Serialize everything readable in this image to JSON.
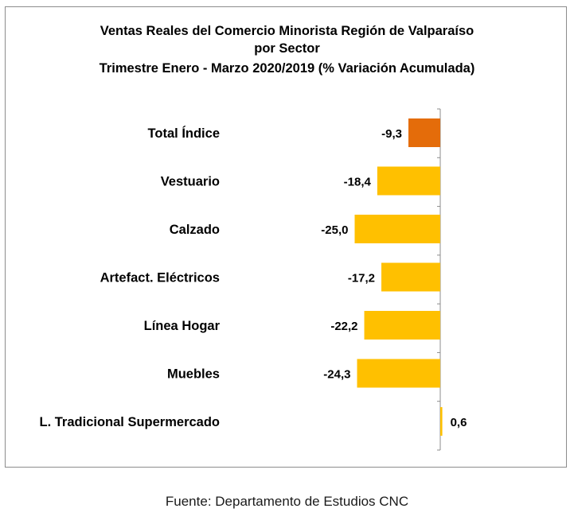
{
  "chart_data": {
    "type": "bar",
    "orientation": "horizontal",
    "title_lines": [
      "Ventas Reales del Comercio Minorista Región de Valparaíso",
      "por Sector",
      "Trimestre Enero - Marzo 2020/2019 (% Variación Acumulada)"
    ],
    "categories": [
      "Total Índice",
      "Vestuario",
      "Calzado",
      "Artefact. Eléctricos",
      "Línea Hogar",
      "Muebles",
      "L. Tradicional Supermercado"
    ],
    "values": [
      -9.3,
      -18.4,
      -25.0,
      -17.2,
      -22.2,
      -24.3,
      0.6
    ],
    "value_labels": [
      "-9,3",
      "-18,4",
      "-25,0",
      "-17,2",
      "-22,2",
      "-24,3",
      "0,6"
    ],
    "bar_colors": [
      "#e46c0a",
      "#ffc000",
      "#ffc000",
      "#ffc000",
      "#ffc000",
      "#ffc000",
      "#ffc000"
    ],
    "grid": false,
    "legend": "none"
  },
  "source_note": "Fuente: Departamento de Estudios CNC"
}
